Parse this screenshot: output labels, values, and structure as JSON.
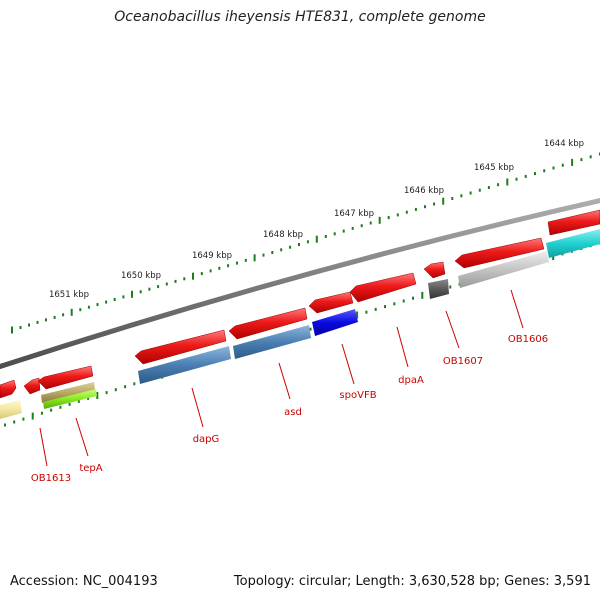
{
  "title": "Oceanobacillus iheyensis HTE831, complete genome",
  "footer": {
    "accession": "Accession: NC_004193",
    "summary": "Topology: circular; Length: 3,630,528 bp; Genes: 3,591"
  },
  "ruler": {
    "ticks": [
      {
        "kbp": 1644,
        "label": "1644 kbp"
      },
      {
        "kbp": 1645,
        "label": "1645 kbp"
      },
      {
        "kbp": 1646,
        "label": "1646 kbp"
      },
      {
        "kbp": 1647,
        "label": "1647 kbp"
      },
      {
        "kbp": 1648,
        "label": "1648 kbp"
      },
      {
        "kbp": 1649,
        "label": "1649 kbp"
      },
      {
        "kbp": 1650,
        "label": "1650 kbp"
      },
      {
        "kbp": 1651,
        "label": "1651 kbp"
      }
    ]
  },
  "genes": [
    {
      "label": "OB1606"
    },
    {
      "label": "OB1607"
    },
    {
      "label": "dpaA"
    },
    {
      "label": "spoVFB"
    },
    {
      "label": "asd"
    },
    {
      "label": "dapG"
    },
    {
      "label": "tepA"
    },
    {
      "label": "OB1613"
    }
  ],
  "colors": {
    "gene_red": "#e81010",
    "ruler_green": "#1e7d1e",
    "backbone_gray": "#7a7a7a",
    "label_red": "#cc0000",
    "steelblue": "#4a7fb3",
    "blue": "#0a0ae0",
    "cyan": "#20d0d0",
    "light_gray": "#c4c4c4",
    "dark_gray": "#5a5a5a",
    "khaki": "#b8a860",
    "lime": "#88e820",
    "pale_yellow": "#f2e6a0"
  }
}
